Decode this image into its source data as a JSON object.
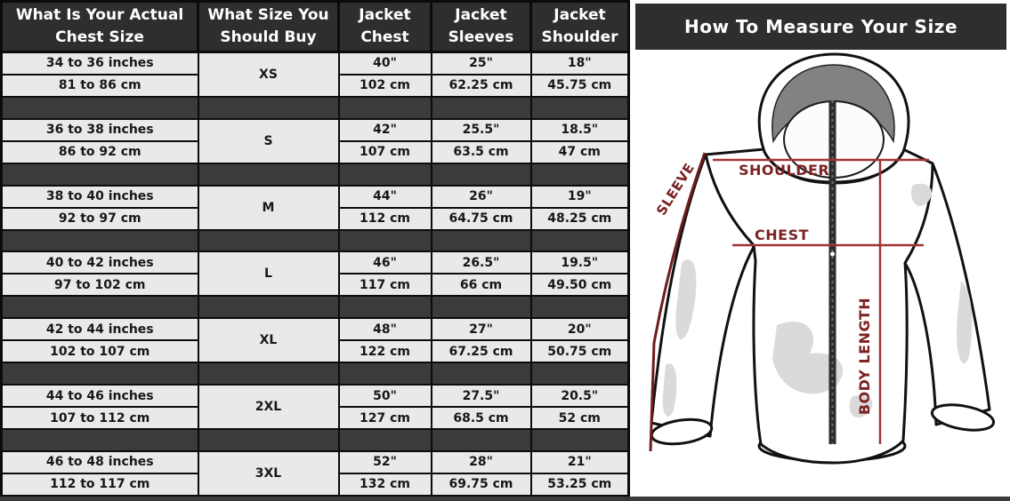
{
  "chart_data": {
    "type": "table",
    "columns": [
      "What Is Your Actual Chest Size",
      "What Size You Should Buy",
      "Jacket Chest",
      "Jacket Sleeves",
      "Jacket Shoulder"
    ],
    "sizes": [
      {
        "size": "XS",
        "actual_chest_inches": "34 to 36 inches",
        "actual_chest_cm": "81 to 86 cm",
        "jacket_chest_inches": "40\"",
        "jacket_chest_cm": "102 cm",
        "jacket_sleeves_inches": "25\"",
        "jacket_sleeves_cm": "62.25 cm",
        "jacket_shoulder_inches": "18\"",
        "jacket_shoulder_cm": "45.75 cm"
      },
      {
        "size": "S",
        "actual_chest_inches": "36 to 38 inches",
        "actual_chest_cm": "86 to 92 cm",
        "jacket_chest_inches": "42\"",
        "jacket_chest_cm": "107 cm",
        "jacket_sleeves_inches": "25.5\"",
        "jacket_sleeves_cm": "63.5 cm",
        "jacket_shoulder_inches": "18.5\"",
        "jacket_shoulder_cm": "47 cm"
      },
      {
        "size": "M",
        "actual_chest_inches": "38 to 40 inches",
        "actual_chest_cm": "92 to 97 cm",
        "jacket_chest_inches": "44\"",
        "jacket_chest_cm": "112 cm",
        "jacket_sleeves_inches": "26\"",
        "jacket_sleeves_cm": "64.75 cm",
        "jacket_shoulder_inches": "19\"",
        "jacket_shoulder_cm": "48.25 cm"
      },
      {
        "size": "L",
        "actual_chest_inches": "40 to 42 inches",
        "actual_chest_cm": "97 to 102 cm",
        "jacket_chest_inches": "46\"",
        "jacket_chest_cm": "117 cm",
        "jacket_sleeves_inches": "26.5\"",
        "jacket_sleeves_cm": "66 cm",
        "jacket_shoulder_inches": "19.5\"",
        "jacket_shoulder_cm": "49.50 cm"
      },
      {
        "size": "XL",
        "actual_chest_inches": "42 to 44 inches",
        "actual_chest_cm": "102 to 107 cm",
        "jacket_chest_inches": "48\"",
        "jacket_chest_cm": "122 cm",
        "jacket_sleeves_inches": "27\"",
        "jacket_sleeves_cm": "67.25 cm",
        "jacket_shoulder_inches": "20\"",
        "jacket_shoulder_cm": "50.75 cm"
      },
      {
        "size": "2XL",
        "actual_chest_inches": "44 to 46 inches",
        "actual_chest_cm": "107 to 112 cm",
        "jacket_chest_inches": "50\"",
        "jacket_chest_cm": "127 cm",
        "jacket_sleeves_inches": "27.5\"",
        "jacket_sleeves_cm": "68.5 cm",
        "jacket_shoulder_inches": "20.5\"",
        "jacket_shoulder_cm": "52 cm"
      },
      {
        "size": "3XL",
        "actual_chest_inches": "46 to 48 inches",
        "actual_chest_cm": "112 to 117 cm",
        "jacket_chest_inches": "52\"",
        "jacket_chest_cm": "132 cm",
        "jacket_sleeves_inches": "28\"",
        "jacket_sleeves_cm": "69.75 cm",
        "jacket_shoulder_inches": "21\"",
        "jacket_shoulder_cm": "53.25 cm"
      }
    ]
  },
  "measure_diagram": {
    "title": "How To Measure Your Size",
    "labels": {
      "shoulder": "SHOULDER",
      "chest": "CHEST",
      "sleeve": "SLEEVE",
      "body_length": "BODY LENGTH"
    }
  },
  "colors": {
    "header_bg": "#2e2e2e",
    "separator_bg": "#3b3b3b",
    "cell_bg": "#eae9e7",
    "grid": "#0b0b0b",
    "header_text": "#ffffff",
    "cell_text": "#171717",
    "measure_line": "#a03434",
    "measure_label": "#7c2222",
    "hood_lining": "#828282",
    "shading": "#dadada"
  }
}
